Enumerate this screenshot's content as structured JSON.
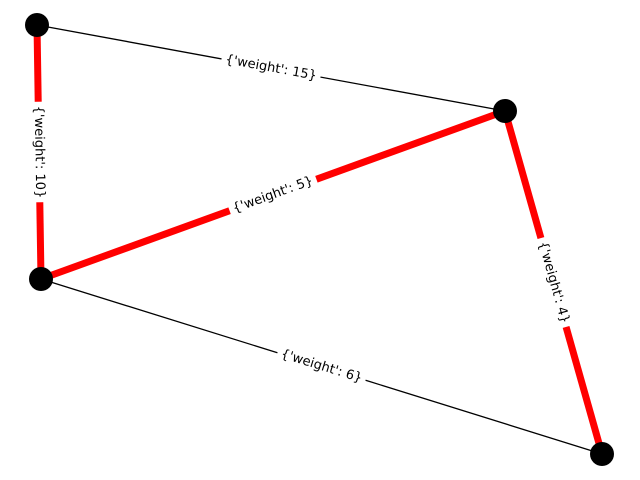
{
  "graph": {
    "node_color": "#000000",
    "highlight_color": "#ff0000",
    "edge_color": "#000000",
    "nodes": [
      {
        "id": "n0"
      },
      {
        "id": "n1"
      },
      {
        "id": "n2"
      },
      {
        "id": "n3"
      }
    ],
    "edges": [
      {
        "id": "e-n0-n1",
        "source": "n0",
        "target": "n1",
        "label": "{'weight': 15}",
        "highlighted": false
      },
      {
        "id": "e-n0-n2",
        "source": "n0",
        "target": "n2",
        "label": "{'weight': 10}",
        "highlighted": true
      },
      {
        "id": "e-n1-n2",
        "source": "n1",
        "target": "n2",
        "label": "{'weight': 5}",
        "highlighted": true
      },
      {
        "id": "e-n1-n3",
        "source": "n1",
        "target": "n3",
        "label": "{'weight': 4}",
        "highlighted": true
      },
      {
        "id": "e-n2-n3",
        "source": "n2",
        "target": "n3",
        "label": "{'weight': 6}",
        "highlighted": false
      }
    ]
  }
}
